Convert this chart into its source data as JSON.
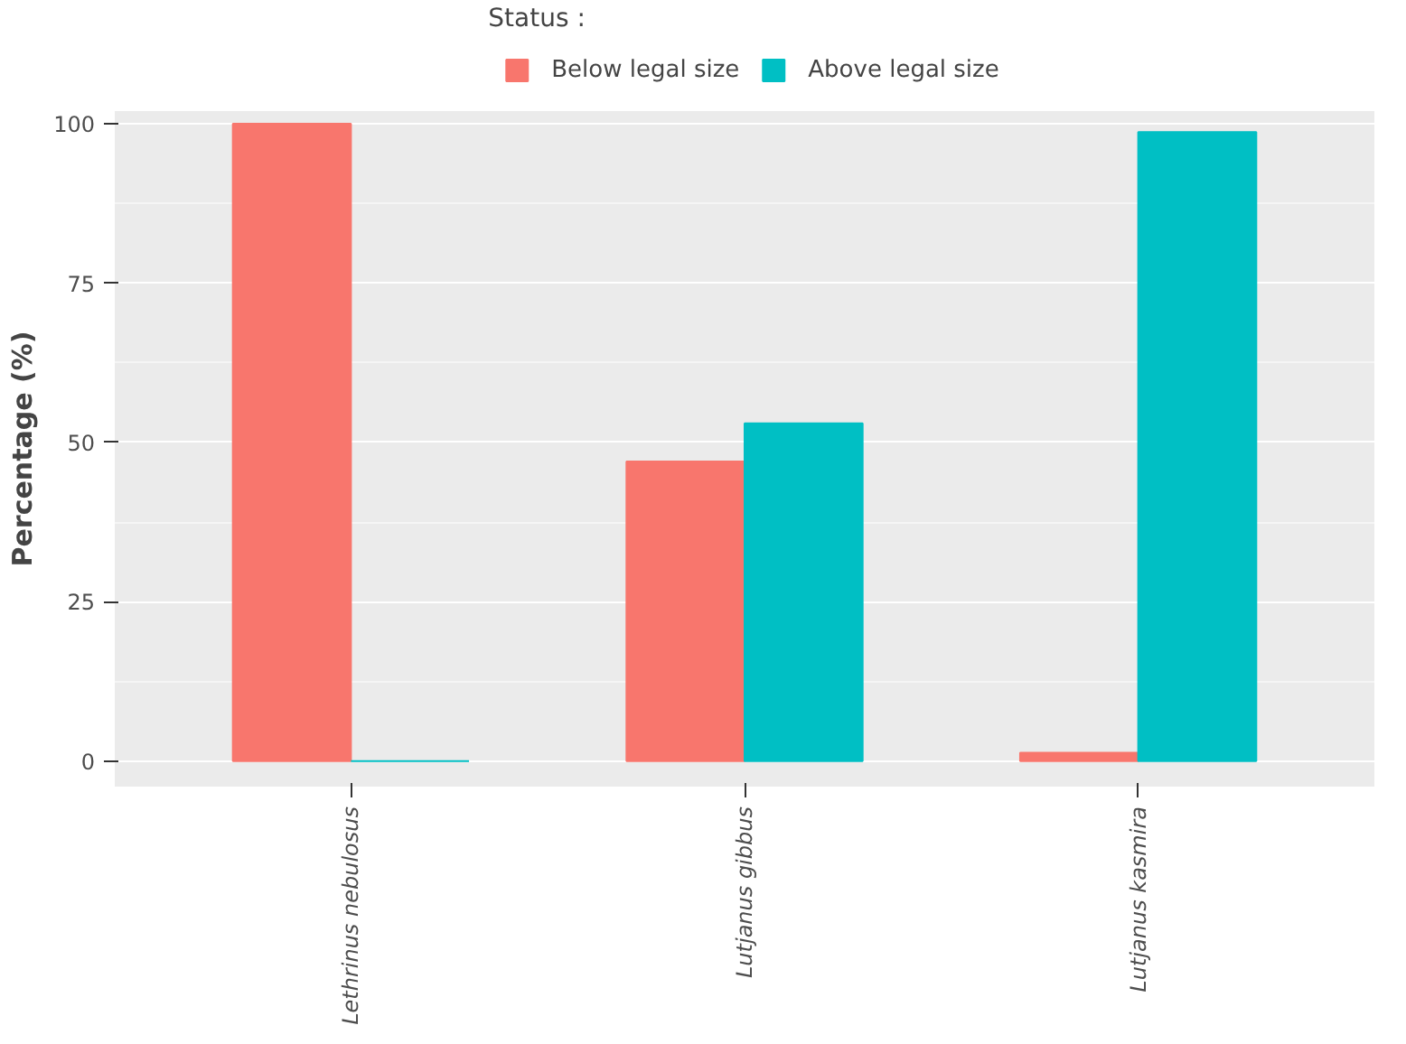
{
  "chart_data": {
    "type": "bar",
    "ylabel": "Percentage (%)",
    "legend_title": "Status :",
    "categories": [
      "Lethrinus nebulosus",
      "Lutjanus gibbus",
      "Lutjanus kasmira"
    ],
    "series": [
      {
        "name": "Below legal size",
        "color": "#f8766d",
        "values": [
          100,
          47,
          1.3
        ]
      },
      {
        "name": "Above legal size",
        "color": "#00bfc4",
        "values": [
          0,
          53,
          98.7
        ]
      }
    ],
    "ylim": [
      -4,
      102
    ],
    "yticks": [
      0,
      25,
      50,
      75,
      100
    ],
    "grid": "y",
    "legend": "top"
  }
}
